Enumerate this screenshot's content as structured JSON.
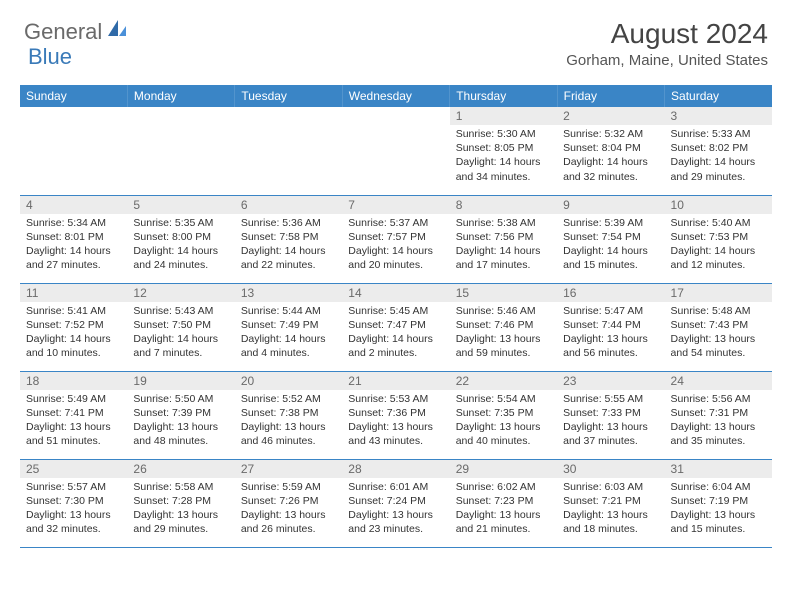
{
  "logo": {
    "text_general": "General",
    "text_blue": "Blue"
  },
  "title": "August 2024",
  "location": "Gorham, Maine, United States",
  "weekday_headers": [
    "Sunday",
    "Monday",
    "Tuesday",
    "Wednesday",
    "Thursday",
    "Friday",
    "Saturday"
  ],
  "colors": {
    "header_bg": "#3a85c6",
    "header_text": "#ffffff",
    "daynum_bg": "#ececec",
    "daynum_text": "#6a6a6a",
    "row_divider": "#3a85c6",
    "body_text": "#333333",
    "logo_gray": "#6a6a6a",
    "logo_blue": "#3a7ab8"
  },
  "days": [
    {
      "n": "",
      "sunrise": "",
      "sunset": "",
      "daylight": ""
    },
    {
      "n": "",
      "sunrise": "",
      "sunset": "",
      "daylight": ""
    },
    {
      "n": "",
      "sunrise": "",
      "sunset": "",
      "daylight": ""
    },
    {
      "n": "",
      "sunrise": "",
      "sunset": "",
      "daylight": ""
    },
    {
      "n": "1",
      "sunrise": "Sunrise: 5:30 AM",
      "sunset": "Sunset: 8:05 PM",
      "daylight": "Daylight: 14 hours and 34 minutes."
    },
    {
      "n": "2",
      "sunrise": "Sunrise: 5:32 AM",
      "sunset": "Sunset: 8:04 PM",
      "daylight": "Daylight: 14 hours and 32 minutes."
    },
    {
      "n": "3",
      "sunrise": "Sunrise: 5:33 AM",
      "sunset": "Sunset: 8:02 PM",
      "daylight": "Daylight: 14 hours and 29 minutes."
    },
    {
      "n": "4",
      "sunrise": "Sunrise: 5:34 AM",
      "sunset": "Sunset: 8:01 PM",
      "daylight": "Daylight: 14 hours and 27 minutes."
    },
    {
      "n": "5",
      "sunrise": "Sunrise: 5:35 AM",
      "sunset": "Sunset: 8:00 PM",
      "daylight": "Daylight: 14 hours and 24 minutes."
    },
    {
      "n": "6",
      "sunrise": "Sunrise: 5:36 AM",
      "sunset": "Sunset: 7:58 PM",
      "daylight": "Daylight: 14 hours and 22 minutes."
    },
    {
      "n": "7",
      "sunrise": "Sunrise: 5:37 AM",
      "sunset": "Sunset: 7:57 PM",
      "daylight": "Daylight: 14 hours and 20 minutes."
    },
    {
      "n": "8",
      "sunrise": "Sunrise: 5:38 AM",
      "sunset": "Sunset: 7:56 PM",
      "daylight": "Daylight: 14 hours and 17 minutes."
    },
    {
      "n": "9",
      "sunrise": "Sunrise: 5:39 AM",
      "sunset": "Sunset: 7:54 PM",
      "daylight": "Daylight: 14 hours and 15 minutes."
    },
    {
      "n": "10",
      "sunrise": "Sunrise: 5:40 AM",
      "sunset": "Sunset: 7:53 PM",
      "daylight": "Daylight: 14 hours and 12 minutes."
    },
    {
      "n": "11",
      "sunrise": "Sunrise: 5:41 AM",
      "sunset": "Sunset: 7:52 PM",
      "daylight": "Daylight: 14 hours and 10 minutes."
    },
    {
      "n": "12",
      "sunrise": "Sunrise: 5:43 AM",
      "sunset": "Sunset: 7:50 PM",
      "daylight": "Daylight: 14 hours and 7 minutes."
    },
    {
      "n": "13",
      "sunrise": "Sunrise: 5:44 AM",
      "sunset": "Sunset: 7:49 PM",
      "daylight": "Daylight: 14 hours and 4 minutes."
    },
    {
      "n": "14",
      "sunrise": "Sunrise: 5:45 AM",
      "sunset": "Sunset: 7:47 PM",
      "daylight": "Daylight: 14 hours and 2 minutes."
    },
    {
      "n": "15",
      "sunrise": "Sunrise: 5:46 AM",
      "sunset": "Sunset: 7:46 PM",
      "daylight": "Daylight: 13 hours and 59 minutes."
    },
    {
      "n": "16",
      "sunrise": "Sunrise: 5:47 AM",
      "sunset": "Sunset: 7:44 PM",
      "daylight": "Daylight: 13 hours and 56 minutes."
    },
    {
      "n": "17",
      "sunrise": "Sunrise: 5:48 AM",
      "sunset": "Sunset: 7:43 PM",
      "daylight": "Daylight: 13 hours and 54 minutes."
    },
    {
      "n": "18",
      "sunrise": "Sunrise: 5:49 AM",
      "sunset": "Sunset: 7:41 PM",
      "daylight": "Daylight: 13 hours and 51 minutes."
    },
    {
      "n": "19",
      "sunrise": "Sunrise: 5:50 AM",
      "sunset": "Sunset: 7:39 PM",
      "daylight": "Daylight: 13 hours and 48 minutes."
    },
    {
      "n": "20",
      "sunrise": "Sunrise: 5:52 AM",
      "sunset": "Sunset: 7:38 PM",
      "daylight": "Daylight: 13 hours and 46 minutes."
    },
    {
      "n": "21",
      "sunrise": "Sunrise: 5:53 AM",
      "sunset": "Sunset: 7:36 PM",
      "daylight": "Daylight: 13 hours and 43 minutes."
    },
    {
      "n": "22",
      "sunrise": "Sunrise: 5:54 AM",
      "sunset": "Sunset: 7:35 PM",
      "daylight": "Daylight: 13 hours and 40 minutes."
    },
    {
      "n": "23",
      "sunrise": "Sunrise: 5:55 AM",
      "sunset": "Sunset: 7:33 PM",
      "daylight": "Daylight: 13 hours and 37 minutes."
    },
    {
      "n": "24",
      "sunrise": "Sunrise: 5:56 AM",
      "sunset": "Sunset: 7:31 PM",
      "daylight": "Daylight: 13 hours and 35 minutes."
    },
    {
      "n": "25",
      "sunrise": "Sunrise: 5:57 AM",
      "sunset": "Sunset: 7:30 PM",
      "daylight": "Daylight: 13 hours and 32 minutes."
    },
    {
      "n": "26",
      "sunrise": "Sunrise: 5:58 AM",
      "sunset": "Sunset: 7:28 PM",
      "daylight": "Daylight: 13 hours and 29 minutes."
    },
    {
      "n": "27",
      "sunrise": "Sunrise: 5:59 AM",
      "sunset": "Sunset: 7:26 PM",
      "daylight": "Daylight: 13 hours and 26 minutes."
    },
    {
      "n": "28",
      "sunrise": "Sunrise: 6:01 AM",
      "sunset": "Sunset: 7:24 PM",
      "daylight": "Daylight: 13 hours and 23 minutes."
    },
    {
      "n": "29",
      "sunrise": "Sunrise: 6:02 AM",
      "sunset": "Sunset: 7:23 PM",
      "daylight": "Daylight: 13 hours and 21 minutes."
    },
    {
      "n": "30",
      "sunrise": "Sunrise: 6:03 AM",
      "sunset": "Sunset: 7:21 PM",
      "daylight": "Daylight: 13 hours and 18 minutes."
    },
    {
      "n": "31",
      "sunrise": "Sunrise: 6:04 AM",
      "sunset": "Sunset: 7:19 PM",
      "daylight": "Daylight: 13 hours and 15 minutes."
    }
  ]
}
